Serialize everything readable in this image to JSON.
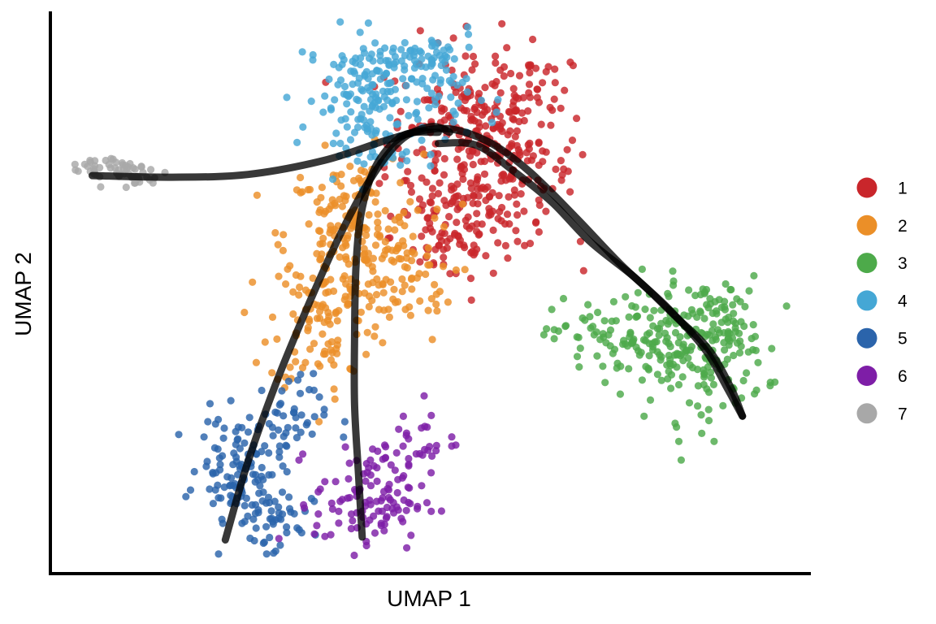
{
  "chart_data": {
    "type": "scatter",
    "title": "",
    "xlabel": "UMAP 1",
    "ylabel": "UMAP 2",
    "xlim": [
      0,
      100
    ],
    "ylim": [
      0,
      100
    ],
    "grid": false,
    "legend": {
      "placement": "right"
    },
    "series": [
      {
        "name": "1",
        "color": "#C9262B",
        "clusters": [
          [
            55,
            77,
            6,
            10,
            230
          ],
          [
            60,
            70,
            5,
            7,
            110
          ],
          [
            52,
            60,
            4,
            5,
            60
          ],
          [
            62,
            84,
            5,
            5,
            40
          ]
        ]
      },
      {
        "name": "2",
        "color": "#EB8F28",
        "clusters": [
          [
            40,
            60,
            5,
            8,
            200
          ],
          [
            36,
            45,
            4,
            7,
            90
          ],
          [
            46,
            52,
            4,
            6,
            50
          ]
        ]
      },
      {
        "name": "3",
        "color": "#4DAA4A",
        "clusters": [
          [
            75,
            42,
            5,
            4,
            90
          ],
          [
            85,
            40,
            5,
            7,
            170
          ],
          [
            90,
            43,
            3,
            4,
            40
          ]
        ]
      },
      {
        "name": "4",
        "color": "#45A7D5",
        "clusters": [
          [
            44,
            86,
            6,
            6,
            190
          ],
          [
            49,
            91,
            4,
            3,
            40
          ],
          [
            42,
            76,
            3,
            4,
            30
          ]
        ]
      },
      {
        "name": "5",
        "color": "#2B64AB",
        "clusters": [
          [
            25,
            19,
            3,
            5,
            110
          ],
          [
            29,
            9,
            3,
            4,
            50
          ],
          [
            31,
            28,
            3,
            4,
            40
          ]
        ]
      },
      {
        "name": "6",
        "color": "#7E1EA7",
        "clusters": [
          [
            42,
            13,
            4,
            5,
            110
          ],
          [
            48,
            24,
            3,
            4,
            30
          ]
        ]
      },
      {
        "name": "7",
        "color": "#A8A8A8",
        "clusters": [
          [
            8,
            72,
            3,
            1.5,
            45
          ],
          [
            12,
            71,
            2,
            1.5,
            15
          ]
        ]
      }
    ],
    "trajectories": [
      [
        [
          5.5,
          70.8
        ],
        [
          16,
          70.5
        ],
        [
          26,
          71
        ],
        [
          36,
          73.5
        ],
        [
          44,
          77
        ],
        [
          49,
          78.8
        ],
        [
          53,
          79
        ],
        [
          58,
          76.5
        ],
        [
          63,
          71.5
        ],
        [
          69,
          63.5
        ],
        [
          75,
          55
        ],
        [
          81,
          47.5
        ],
        [
          86,
          40
        ],
        [
          89,
          33
        ],
        [
          91,
          28
        ]
      ],
      [
        [
          23,
          6
        ],
        [
          26,
          20
        ],
        [
          30,
          35
        ],
        [
          34,
          48
        ],
        [
          38,
          60
        ],
        [
          42,
          70
        ],
        [
          46,
          77
        ],
        [
          50,
          79.5
        ],
        [
          52.5,
          78.5
        ]
      ],
      [
        [
          41,
          6.5
        ],
        [
          40.5,
          18
        ],
        [
          40,
          30
        ],
        [
          40,
          42
        ],
        [
          40.2,
          55
        ],
        [
          41,
          65
        ],
        [
          43,
          73
        ],
        [
          46.5,
          78
        ],
        [
          51,
          78.5
        ]
      ],
      [
        [
          51,
          76.5
        ],
        [
          56,
          76.2
        ],
        [
          61,
          71.5
        ],
        [
          66,
          66
        ],
        [
          71,
          59
        ],
        [
          77,
          52.5
        ],
        [
          82,
          46
        ],
        [
          86.5,
          40
        ],
        [
          89.5,
          33
        ],
        [
          91,
          28
        ]
      ]
    ]
  }
}
